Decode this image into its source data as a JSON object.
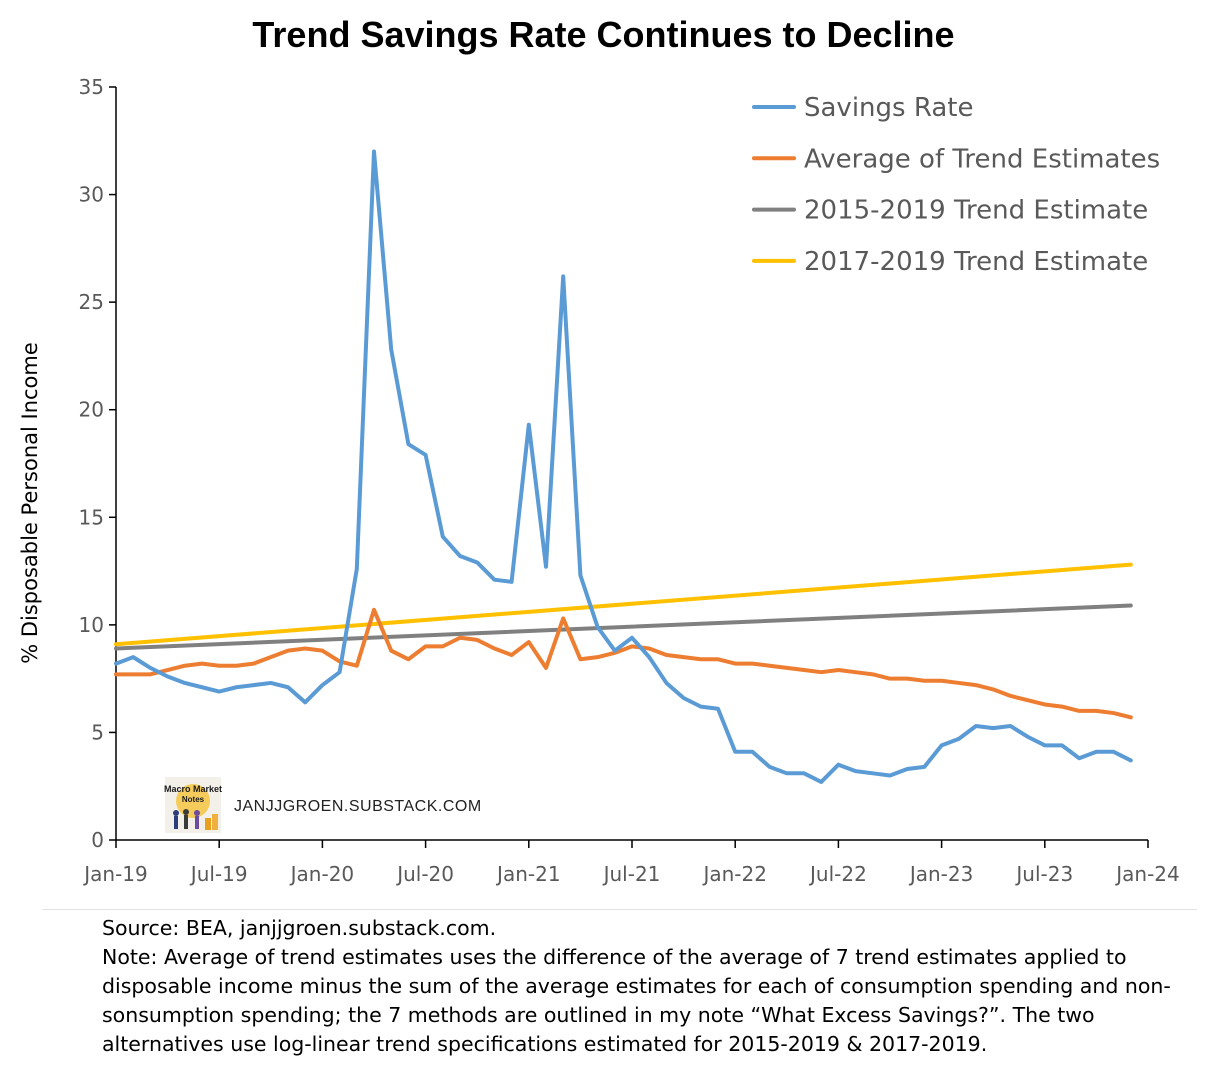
{
  "chart_data": {
    "type": "line",
    "title": "Trend Savings Rate Continues to Decline",
    "ylabel": "% Disposable Personal Income",
    "xlabel": "",
    "ylim": [
      0,
      35
    ],
    "yticks": [
      "0",
      "5",
      "10",
      "15",
      "20",
      "25",
      "30",
      "35"
    ],
    "xlim": [
      "2019-01",
      "2024-01"
    ],
    "xticks": [
      "Jan-19",
      "Jul-19",
      "Jan-20",
      "Jul-20",
      "Jan-21",
      "Jul-21",
      "Jan-22",
      "Jul-22",
      "Jan-23",
      "Jul-23",
      "Jan-24"
    ],
    "grid": false,
    "legend_position": "top-right",
    "start_month": "2019-01",
    "series": [
      {
        "name": "Savings Rate",
        "color": "#5B9BD5",
        "values": [
          8.2,
          8.5,
          8.0,
          7.6,
          7.3,
          7.1,
          6.9,
          7.1,
          7.2,
          7.3,
          7.1,
          6.4,
          7.2,
          7.8,
          12.6,
          32.0,
          22.8,
          18.4,
          17.9,
          14.1,
          13.2,
          12.9,
          12.1,
          12.0,
          19.3,
          12.7,
          26.2,
          12.3,
          9.9,
          8.8,
          9.4,
          8.5,
          7.3,
          6.6,
          6.2,
          6.1,
          4.1,
          4.1,
          3.4,
          3.1,
          3.1,
          2.7,
          3.5,
          3.2,
          3.1,
          3.0,
          3.3,
          3.4,
          4.4,
          4.7,
          5.3,
          5.2,
          5.3,
          4.8,
          4.4,
          4.4,
          3.8,
          4.1,
          4.1,
          3.7
        ]
      },
      {
        "name": "Average of Trend Estimates",
        "color": "#ED7D31",
        "values": [
          7.7,
          7.7,
          7.7,
          7.9,
          8.1,
          8.2,
          8.1,
          8.1,
          8.2,
          8.5,
          8.8,
          8.9,
          8.8,
          8.3,
          8.1,
          10.7,
          8.8,
          8.4,
          9.0,
          9.0,
          9.4,
          9.3,
          8.9,
          8.6,
          9.2,
          8.0,
          10.3,
          8.4,
          8.5,
          8.7,
          9.0,
          8.9,
          8.6,
          8.5,
          8.4,
          8.4,
          8.2,
          8.2,
          8.1,
          8.0,
          7.9,
          7.8,
          7.9,
          7.8,
          7.7,
          7.5,
          7.5,
          7.4,
          7.4,
          7.3,
          7.2,
          7.0,
          6.7,
          6.5,
          6.3,
          6.2,
          6.0,
          6.0,
          5.9,
          5.7
        ]
      },
      {
        "name": "2015-2019 Trend Estimate",
        "color": "#808080",
        "values": [
          8.9,
          10.9
        ]
      },
      {
        "name": "2017-2019 Trend Estimate",
        "color": "#FFC000",
        "values": [
          9.1,
          12.8
        ]
      }
    ],
    "watermark": {
      "logo_text": "Macro Market Notes",
      "site": "JANJJGROEN.SUBSTACK.COM"
    }
  },
  "footnotes": {
    "source": "Source: BEA, janjjgroen.substack.com.",
    "note": "Note: Average of trend estimates uses the difference of the average of 7 trend estimates applied to disposable income minus the sum of the average estimates for each of consumption spending and non-sonsumption spending; the 7 methods are outlined in my note “What Excess Savings?”. The two alternatives use log-linear trend specifications estimated for 2015-2019 & 2017-2019."
  }
}
